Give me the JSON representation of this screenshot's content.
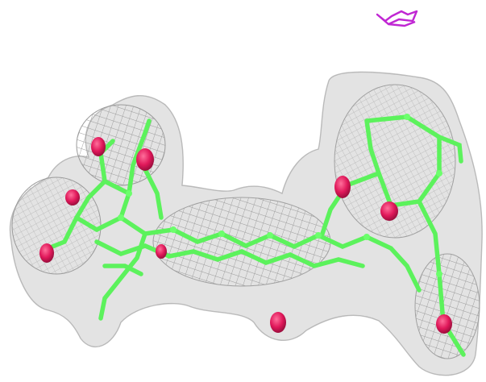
{
  "scene": {
    "background": "#ffffff",
    "mesh_color": "#a9a9a9",
    "mesh_fill": "#d6d6d6",
    "carbon_color": "#5cf25c",
    "oxygen_color": "#e0185a",
    "marker_color": "#c026d3",
    "objects": {
      "density_map": "electron-density-mesh",
      "ligand": "ball-and-stick-ligand",
      "marker": "magenta-ribbon-fragment"
    }
  }
}
